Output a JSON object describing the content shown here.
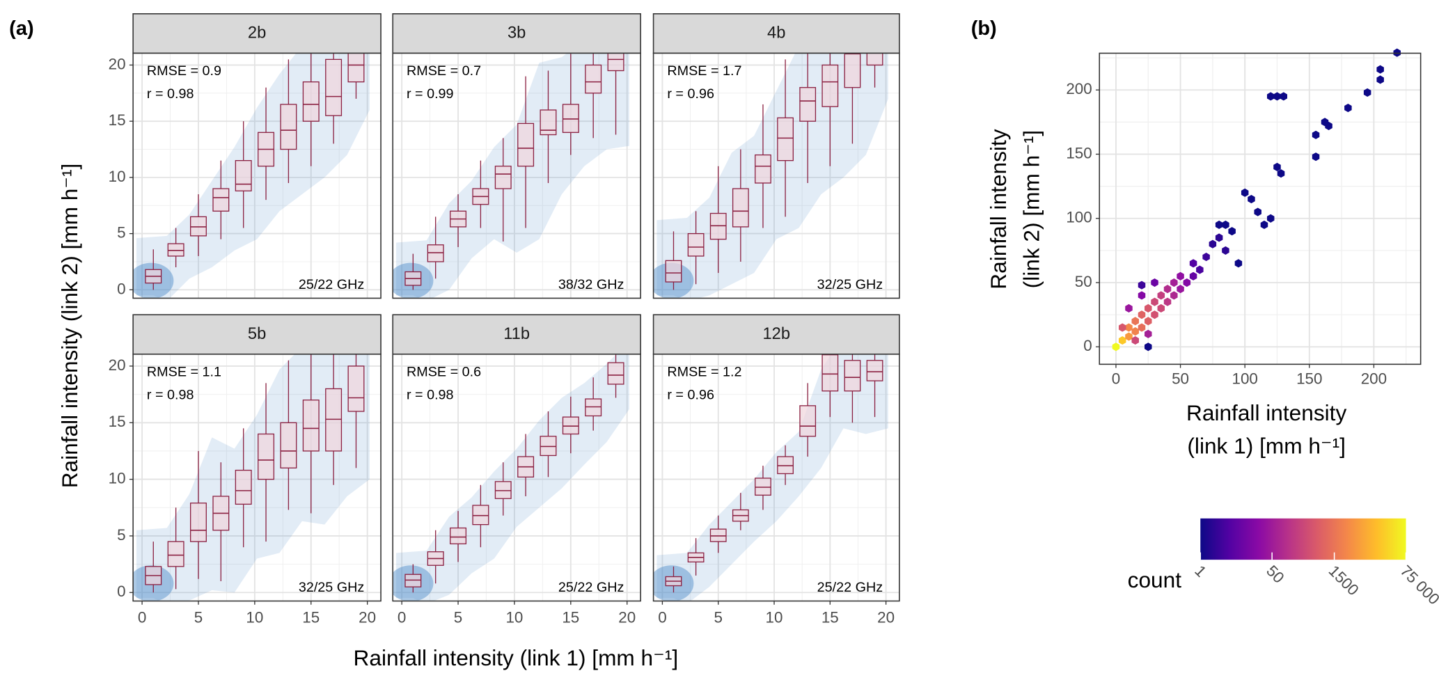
{
  "chart_data": [
    {
      "type": "box",
      "panel_label": "(a)",
      "xlabel": "Rainfall intensity (link 1) [mm h⁻¹]",
      "ylabel": "Rainfall intensity (link 2) [mm h⁻¹]",
      "xlim": [
        -0.8,
        21.2
      ],
      "ylim": [
        -0.75,
        21.05
      ],
      "xticks": [
        0,
        5,
        10,
        15,
        20
      ],
      "yticks": [
        0,
        5,
        10,
        15,
        20
      ],
      "grid": true,
      "x": [
        1,
        3,
        5,
        7,
        9,
        11,
        13,
        15,
        17,
        19
      ],
      "box_color": "#8b2142",
      "point_color": "#4a8ac8",
      "facets": [
        {
          "title": "2b",
          "rmse": "RMSE = 0.9",
          "r": "r = 0.98",
          "frequency": "25/22 GHz",
          "median": [
            1.2,
            3.5,
            5.6,
            8.2,
            9.4,
            12.5,
            14.2,
            16.5,
            17.2,
            20
          ],
          "q1": [
            0.6,
            3.0,
            4.8,
            7.0,
            8.8,
            11,
            12.5,
            15,
            15.5,
            18.5
          ],
          "q3": [
            1.8,
            4.1,
            6.5,
            9.0,
            11.5,
            14,
            16.5,
            18.5,
            20.5,
            21.5
          ],
          "low": [
            0,
            2.0,
            3.0,
            4.5,
            5.5,
            8,
            9.5,
            11,
            13,
            17
          ],
          "high": [
            3.6,
            5.5,
            8.5,
            11.5,
            15,
            18,
            20.5,
            21.5,
            21.5,
            21.5
          ]
        },
        {
          "title": "3b",
          "rmse": "RMSE = 0.7",
          "r": "r = 0.99",
          "frequency": "38/32 GHz",
          "median": [
            1.0,
            3.3,
            6.3,
            8.3,
            10.3,
            12.6,
            14.2,
            15.2,
            18.5,
            20.5
          ],
          "q1": [
            0.4,
            2.5,
            5.6,
            7.6,
            9.0,
            11.0,
            13.8,
            14.0,
            17.5,
            19.5
          ],
          "q3": [
            1.6,
            4.0,
            7.0,
            9.0,
            11.0,
            14.8,
            16.0,
            16.5,
            20.0,
            21.5
          ],
          "low": [
            0,
            1.0,
            3.8,
            5.5,
            4.3,
            5.5,
            9.5,
            12,
            13.5,
            13.8
          ],
          "high": [
            3.2,
            6.5,
            8.5,
            11.5,
            13.5,
            19,
            19.5,
            21,
            21.5,
            22
          ]
        },
        {
          "title": "4b",
          "rmse": "RMSE = 1.7",
          "r": "r = 0.96",
          "frequency": "32/25 GHz",
          "median": [
            1.5,
            3.8,
            5.7,
            7.0,
            11.0,
            13.5,
            16.8,
            18.5,
            21,
            21.5
          ],
          "q1": [
            0.7,
            3.0,
            4.5,
            5.6,
            9.5,
            11.5,
            15.0,
            16.3,
            18,
            20
          ],
          "q3": [
            2.6,
            5.0,
            6.8,
            9.0,
            12.0,
            15.3,
            18.0,
            20.0,
            22,
            22
          ],
          "low": [
            0,
            0.5,
            1.5,
            2.5,
            5.5,
            6.5,
            9.5,
            11,
            13,
            18
          ],
          "high": [
            5.2,
            7.0,
            11.0,
            12.5,
            16.5,
            20.5,
            21.5,
            21.5,
            22,
            22
          ]
        },
        {
          "title": "5b",
          "rmse": "RMSE = 1.1",
          "r": "r = 0.98",
          "frequency": "32/25 GHz",
          "median": [
            1.5,
            3.3,
            5.5,
            7.0,
            9.0,
            11.7,
            12.5,
            14.5,
            15.3,
            17.2
          ],
          "q1": [
            0.7,
            2.3,
            4.5,
            5.5,
            7.8,
            10.0,
            11.0,
            12.5,
            12.5,
            16.0
          ],
          "q3": [
            2.3,
            4.5,
            7.9,
            8.5,
            10.8,
            14.0,
            15.0,
            17.0,
            18.0,
            20.0
          ],
          "low": [
            0,
            0.3,
            1.2,
            1.0,
            4.0,
            4.5,
            7.3,
            7.0,
            9.5,
            11.0
          ],
          "high": [
            4.5,
            7.5,
            12.5,
            11.5,
            14.5,
            18.5,
            20.5,
            21.5,
            22,
            22
          ]
        },
        {
          "title": "11b",
          "rmse": "RMSE = 0.6",
          "r": "r = 0.98",
          "frequency": "25/22 GHz",
          "median": [
            1.1,
            3.0,
            4.9,
            6.8,
            9.0,
            11.1,
            12.9,
            14.7,
            16.4,
            19.2
          ],
          "q1": [
            0.5,
            2.4,
            4.3,
            6.0,
            8.3,
            10.2,
            12.1,
            14.0,
            15.6,
            18.4
          ],
          "q3": [
            1.6,
            3.6,
            5.7,
            7.7,
            9.8,
            12.0,
            13.8,
            15.5,
            17.1,
            20.3
          ],
          "low": [
            0,
            0.8,
            2.7,
            4.0,
            6.8,
            8.5,
            10.2,
            12.3,
            14.3,
            17.2
          ],
          "high": [
            2.5,
            5.5,
            7.2,
            9.5,
            11.5,
            14.0,
            16.0,
            17.3,
            19.0,
            21.0
          ]
        },
        {
          "title": "12b",
          "rmse": "RMSE = 1.2",
          "r": "r = 0.96",
          "frequency": "25/22 GHz",
          "median": [
            1.0,
            3.1,
            5.0,
            6.8,
            9.3,
            11.2,
            14.7,
            19.3,
            19.0,
            19.5
          ],
          "q1": [
            0.6,
            2.7,
            4.5,
            6.3,
            8.6,
            10.5,
            13.8,
            17.8,
            17.8,
            18.7
          ],
          "q3": [
            1.4,
            3.5,
            5.6,
            7.3,
            10.1,
            12.0,
            16.5,
            21,
            20.5,
            20.5
          ],
          "low": [
            0,
            1.5,
            3.5,
            5.5,
            7.3,
            9.5,
            12,
            15.5,
            15,
            15.5
          ],
          "high": [
            2.3,
            4.8,
            6.8,
            8.8,
            11.2,
            13,
            18.5,
            21.5,
            21.5,
            21.5
          ]
        }
      ]
    },
    {
      "type": "hexbin",
      "panel_label": "(b)",
      "xlabel": [
        "Rainfall intensity",
        "(link 1) [mm h⁻¹]"
      ],
      "ylabel": [
        "Rainfall intensity",
        "(link 2) [mm h⁻¹]"
      ],
      "xlim": [
        -12.8,
        236.3
      ],
      "ylim": [
        -13.6,
        228.6
      ],
      "xticks": [
        0,
        50,
        100,
        150,
        200
      ],
      "yticks": [
        0,
        50,
        100,
        150,
        200
      ],
      "grid": true,
      "x": [
        0,
        5,
        10,
        10,
        15,
        15,
        20,
        20,
        25,
        25,
        30,
        30,
        35,
        35,
        40,
        40,
        45,
        45,
        50,
        50,
        55,
        5,
        15,
        25,
        10,
        20,
        30,
        60,
        60,
        65,
        70,
        75,
        80,
        85,
        90,
        80,
        85,
        25,
        20,
        100,
        105,
        110,
        120,
        115,
        120,
        125,
        130,
        125,
        128,
        155,
        155,
        162,
        165,
        180,
        195,
        205,
        205,
        218,
        95
      ],
      "y": [
        0,
        5,
        8,
        15,
        12,
        20,
        15,
        25,
        20,
        30,
        25,
        35,
        30,
        40,
        35,
        45,
        40,
        50,
        45,
        55,
        50,
        15,
        5,
        10,
        30,
        40,
        50,
        55,
        65,
        60,
        70,
        80,
        85,
        75,
        90,
        95,
        95,
        0,
        48,
        120,
        115,
        105,
        100,
        95,
        195,
        195,
        195,
        140,
        135,
        165,
        148,
        175,
        172,
        186,
        198,
        208,
        216,
        229,
        65
      ],
      "counts": [
        75000,
        20000,
        5000,
        3000,
        2500,
        1500,
        1200,
        800,
        700,
        500,
        400,
        300,
        300,
        200,
        150,
        100,
        80,
        60,
        40,
        30,
        20,
        500,
        300,
        60,
        40,
        20,
        10,
        8,
        5,
        4,
        3,
        2,
        2,
        2,
        1,
        1,
        1,
        1,
        3,
        1,
        1,
        1,
        1,
        1,
        1,
        1,
        1,
        1,
        1,
        1,
        1,
        1,
        1,
        1,
        1,
        1,
        1,
        1,
        1
      ],
      "colorbar": {
        "label": "count",
        "lim": [
          1,
          75000
        ],
        "log": true,
        "ticks": [
          1,
          50,
          1500,
          {
            "value": 75000,
            "label": "75 000"
          }
        ],
        "palette": [
          "#0d0887",
          "#5302a3",
          "#8b0aa5",
          "#b83289",
          "#db5c68",
          "#f48849",
          "#febd2a",
          "#f0f921"
        ]
      }
    }
  ]
}
